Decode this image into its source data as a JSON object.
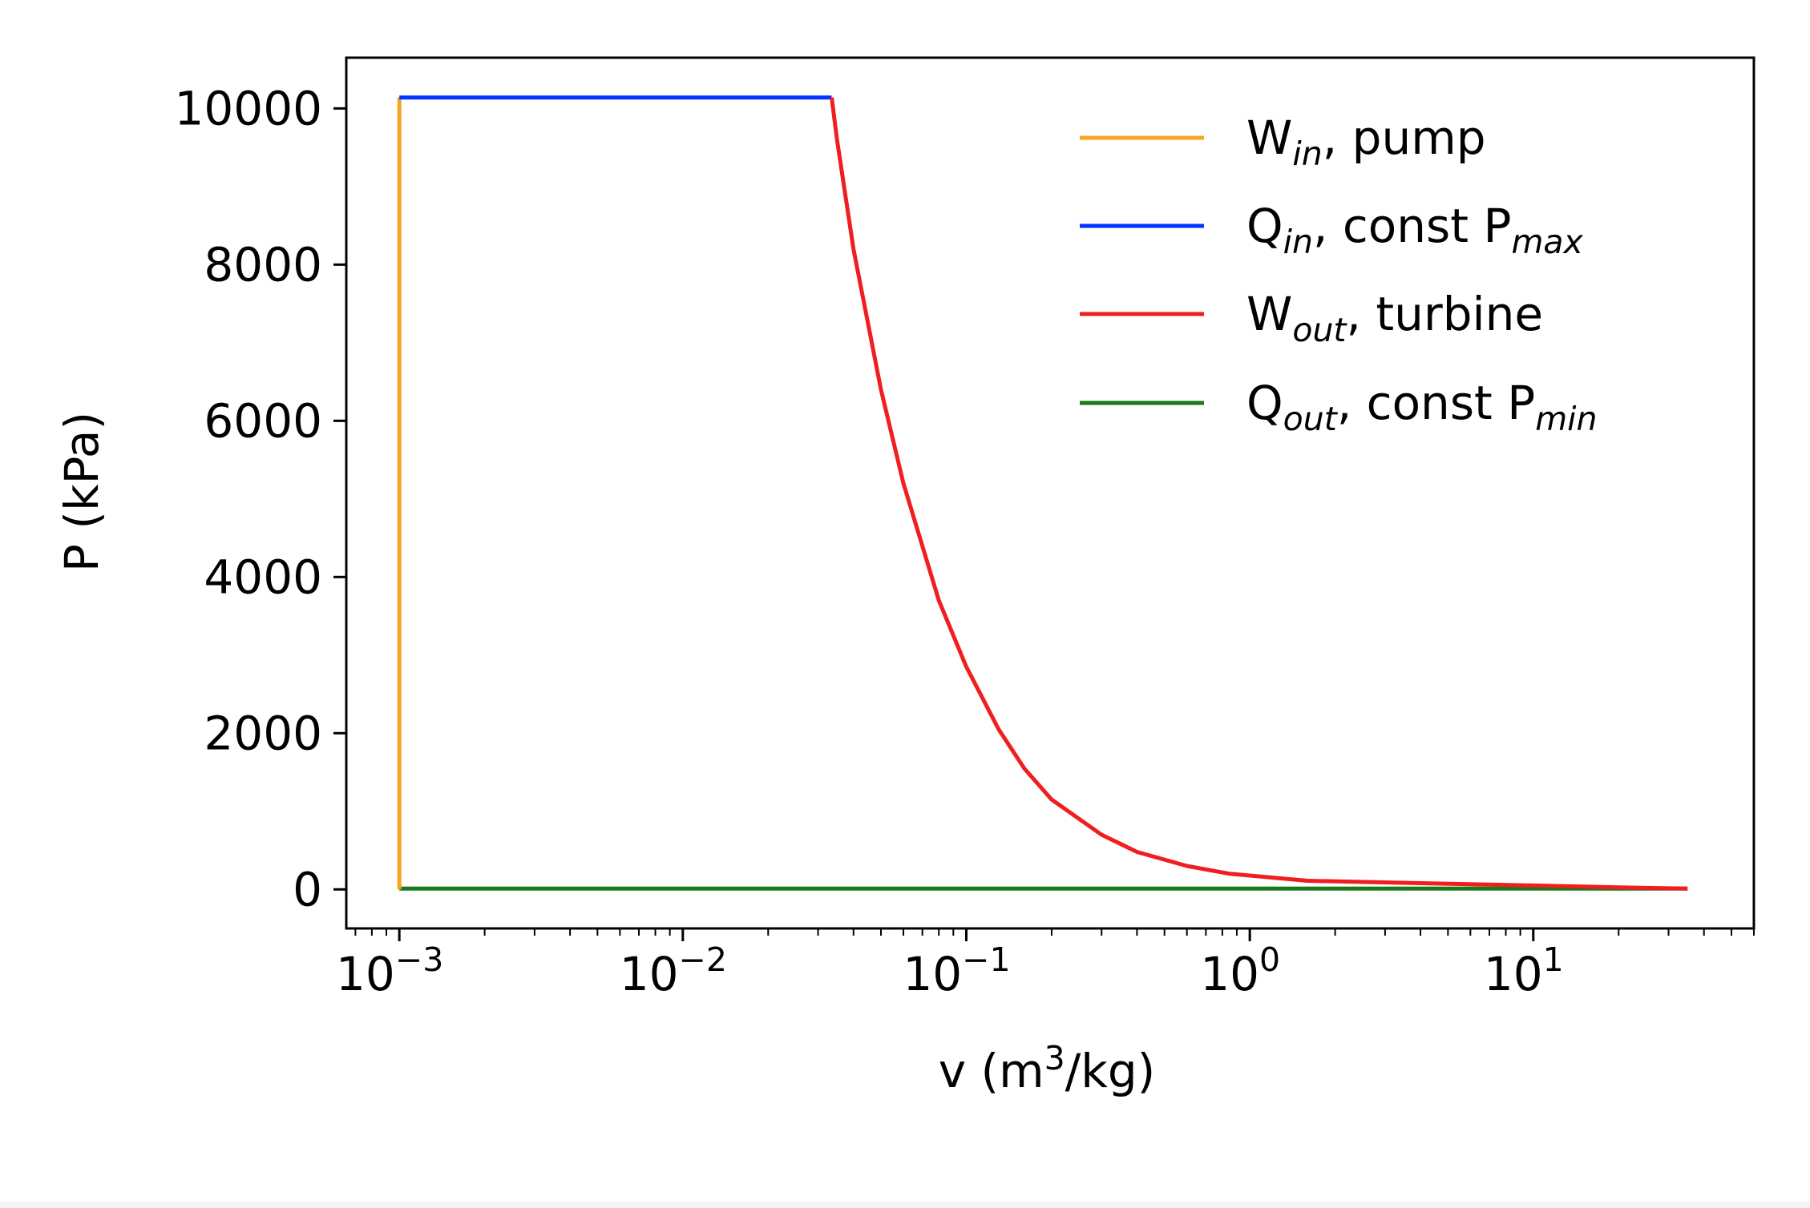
{
  "chart_data": {
    "type": "line",
    "xscale": "log",
    "xlim": [
      0.00065,
      60
    ],
    "ylim": [
      -500,
      10650
    ],
    "xlabel": {
      "main": "v (m",
      "sup": "3",
      "rest": "/kg)"
    },
    "ylabel": "P (kPa)",
    "y_ticks": [
      {
        "value": 0,
        "label": "0"
      },
      {
        "value": 2000,
        "label": "2000"
      },
      {
        "value": 4000,
        "label": "4000"
      },
      {
        "value": 6000,
        "label": "6000"
      },
      {
        "value": 8000,
        "label": "8000"
      },
      {
        "value": 10000,
        "label": "10000"
      }
    ],
    "x_ticks": [
      {
        "value": 0.001,
        "base": "10",
        "exp": "−3"
      },
      {
        "value": 0.01,
        "base": "10",
        "exp": "−2"
      },
      {
        "value": 0.1,
        "base": "10",
        "exp": "−1"
      },
      {
        "value": 1,
        "base": "10",
        "exp": "0"
      },
      {
        "value": 10,
        "base": "10",
        "exp": "1"
      }
    ],
    "legend_position": "top-right",
    "series": [
      {
        "name": "W",
        "name_sub": "in",
        "name_rest": ", pump",
        "color": "#f5a623",
        "x": [
          0.001,
          0.001
        ],
        "y": [
          0,
          10140
        ]
      },
      {
        "name": "Q",
        "name_sub": "in",
        "name_rest": ", const P",
        "name_sub2": "max",
        "color": "#0033ff",
        "x": [
          0.001,
          0.0335
        ],
        "y": [
          10140,
          10140
        ]
      },
      {
        "name": "W",
        "name_sub": "out",
        "name_rest": ", turbine",
        "color": "#f01e1e",
        "x": [
          0.0335,
          0.035,
          0.04,
          0.05,
          0.06,
          0.08,
          0.1,
          0.13,
          0.16,
          0.2,
          0.3,
          0.4,
          0.6,
          0.85,
          1.6,
          4,
          10,
          20,
          35
        ],
        "y": [
          10140,
          9600,
          8200,
          6400,
          5200,
          3700,
          2850,
          2050,
          1550,
          1150,
          700,
          480,
          300,
          200,
          110,
          80,
          50,
          25,
          10
        ]
      },
      {
        "name": "Q",
        "name_sub": "out",
        "name_rest": ", const P",
        "name_sub2": "min",
        "color": "#1a7a1a",
        "x": [
          0.001,
          35
        ],
        "y": [
          10,
          10
        ]
      }
    ]
  }
}
